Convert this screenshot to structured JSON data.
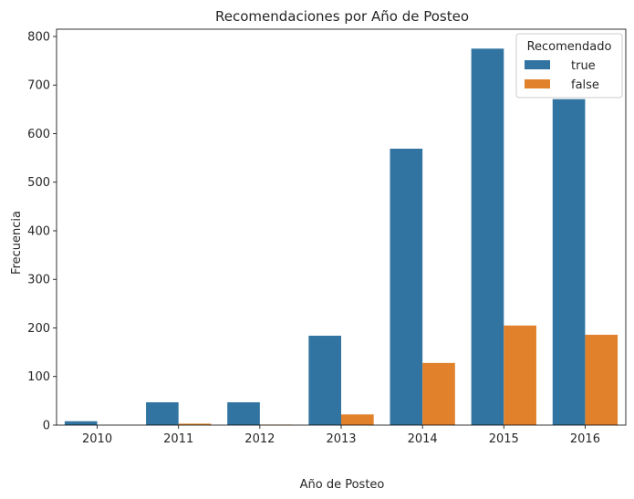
{
  "chart_data": {
    "type": "bar",
    "title": "Recomendaciones por Año de Posteo",
    "xlabel": "Año de Posteo",
    "ylabel": "Frecuencia",
    "categories": [
      "2010",
      "2011",
      "2012",
      "2013",
      "2014",
      "2015",
      "2016"
    ],
    "series": [
      {
        "name": "true",
        "values": [
          8,
          47,
          47,
          184,
          569,
          775,
          671
        ],
        "color": "#3274a1"
      },
      {
        "name": "false",
        "values": [
          0,
          3,
          1,
          22,
          128,
          205,
          186
        ],
        "color": "#e1812c"
      }
    ],
    "ylim": [
      0,
      815
    ],
    "yticks": [
      0,
      100,
      200,
      300,
      400,
      500,
      600,
      700,
      800
    ],
    "legend": {
      "title": "Recomendado",
      "placement": "top-right"
    },
    "grid": false
  }
}
